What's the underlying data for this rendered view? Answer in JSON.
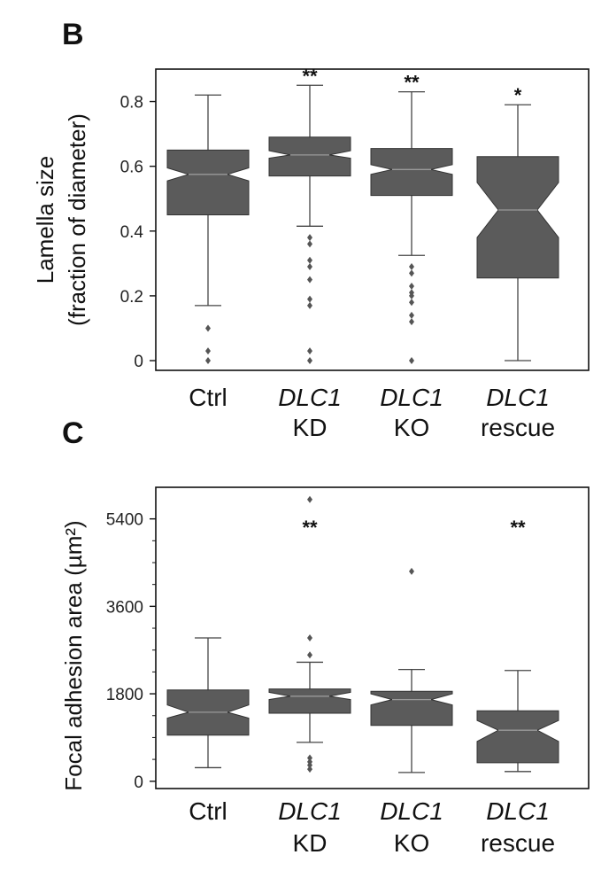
{
  "chart_data": [
    {
      "type": "boxplot",
      "panel": "B",
      "ylabel": "Lamella size",
      "ylabel2": "(fraction of diameter)",
      "ylim": [
        -0.03,
        0.9
      ],
      "yticks": [
        0,
        0.2,
        0.4,
        0.6,
        0.8
      ],
      "ytick_labels": [
        "0",
        "0.2",
        "0.4",
        "0.6",
        "0.8"
      ],
      "notched": true,
      "box_color": "#5b5b5b",
      "categories": [
        {
          "line1": "Ctrl",
          "line1_italic": false,
          "line2": ""
        },
        {
          "line1": "DLC1",
          "line1_italic": true,
          "line2": "KD"
        },
        {
          "line1": "DLC1",
          "line1_italic": true,
          "line2": "KO"
        },
        {
          "line1": "DLC1",
          "line1_italic": true,
          "line2": "rescue"
        }
      ],
      "boxes": [
        {
          "q1": 0.45,
          "median": 0.575,
          "q3": 0.65,
          "notch_lo": 0.555,
          "notch_hi": 0.595,
          "whisker_lo": 0.17,
          "whisker_hi": 0.82,
          "outliers": [
            0.1,
            0.03,
            0.0
          ],
          "sig": ""
        },
        {
          "q1": 0.57,
          "median": 0.635,
          "q3": 0.69,
          "notch_lo": 0.625,
          "notch_hi": 0.648,
          "whisker_lo": 0.415,
          "whisker_hi": 0.85,
          "outliers": [
            0.38,
            0.36,
            0.31,
            0.29,
            0.25,
            0.19,
            0.17,
            0.03,
            0.0
          ],
          "sig": "**"
        },
        {
          "q1": 0.51,
          "median": 0.59,
          "q3": 0.655,
          "notch_lo": 0.575,
          "notch_hi": 0.605,
          "whisker_lo": 0.325,
          "whisker_hi": 0.83,
          "outliers": [
            0.29,
            0.27,
            0.23,
            0.21,
            0.2,
            0.18,
            0.14,
            0.12,
            0.0
          ],
          "sig": "**"
        },
        {
          "q1": 0.255,
          "median": 0.465,
          "q3": 0.63,
          "notch_lo": 0.38,
          "notch_hi": 0.55,
          "whisker_lo": 0.0,
          "whisker_hi": 0.79,
          "outliers": [],
          "sig": "*"
        }
      ]
    },
    {
      "type": "boxplot",
      "panel": "C",
      "ylabel": "Focal adhesion area (µm²)",
      "ylim": [
        -150,
        6050
      ],
      "yticks": [
        0,
        1800,
        3600,
        5400
      ],
      "ytick_labels": [
        "0",
        "1800",
        "3600",
        "5400"
      ],
      "minor_ticks": [
        450,
        900,
        1350,
        2250,
        2700,
        3150,
        4050,
        4500,
        4950
      ],
      "notched": true,
      "box_color": "#5b5b5b",
      "categories": [
        {
          "line1": "Ctrl",
          "line1_italic": false,
          "line2": ""
        },
        {
          "line1": "DLC1",
          "line1_italic": true,
          "line2": "KD"
        },
        {
          "line1": "DLC1",
          "line1_italic": true,
          "line2": "KO"
        },
        {
          "line1": "DLC1",
          "line1_italic": true,
          "line2": "rescue"
        }
      ],
      "boxes": [
        {
          "q1": 950,
          "median": 1420,
          "q3": 1880,
          "notch_lo": 1300,
          "notch_hi": 1570,
          "whisker_lo": 280,
          "whisker_hi": 2950,
          "outliers": [],
          "sig": ""
        },
        {
          "q1": 1400,
          "median": 1750,
          "q3": 1900,
          "notch_lo": 1680,
          "notch_hi": 1830,
          "whisker_lo": 800,
          "whisker_hi": 2450,
          "outliers": [
            2950,
            2600,
            480,
            400,
            330,
            250
          ],
          "sig": "**"
        },
        {
          "q1": 1150,
          "median": 1680,
          "q3": 1850,
          "notch_lo": 1570,
          "notch_hi": 1800,
          "whisker_lo": 180,
          "whisker_hi": 2300,
          "outliers": [
            4320
          ],
          "sig": ""
        },
        {
          "q1": 380,
          "median": 1050,
          "q3": 1450,
          "notch_lo": 820,
          "notch_hi": 1250,
          "whisker_lo": 200,
          "whisker_hi": 2280,
          "outliers": [],
          "sig": "**"
        }
      ],
      "extra_outliers": [
        {
          "box": 1,
          "value": 5800
        }
      ]
    }
  ]
}
